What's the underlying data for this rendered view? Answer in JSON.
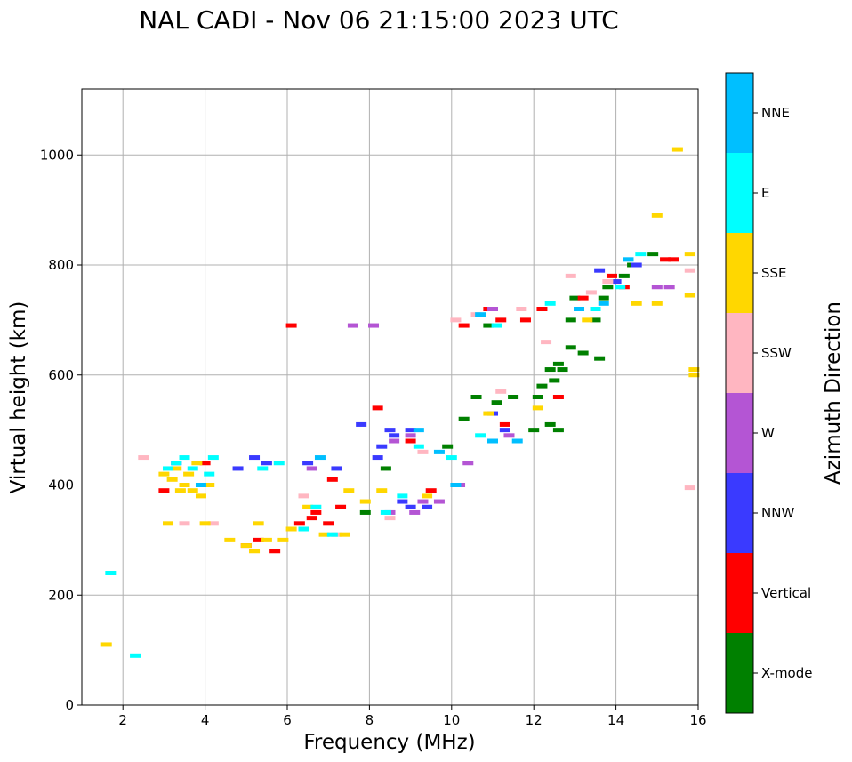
{
  "chart_data": {
    "type": "scatter",
    "title": "NAL CADI - Nov 06 21:15:00 2023 UTC",
    "xlabel": "Frequency (MHz)",
    "ylabel": "Virtual height (km)",
    "xlim": [
      1,
      16
    ],
    "ylim": [
      0,
      1120
    ],
    "xticks": [
      2,
      4,
      6,
      8,
      10,
      12,
      14,
      16
    ],
    "yticks": [
      0,
      200,
      400,
      600,
      800,
      1000
    ],
    "grid": true,
    "colorbar": {
      "label": "Azimuth Direction",
      "categories": [
        "X-mode",
        "Vertical",
        "NNW",
        "W",
        "SSW",
        "SSE",
        "E",
        "NNE"
      ],
      "colors": [
        "#008000",
        "#ff0000",
        "#3a3aff",
        "#b455d4",
        "#ffb6c1",
        "#ffd700",
        "#00ffff",
        "#00bfff"
      ]
    },
    "series": [
      {
        "name": "X-mode",
        "points": [
          [
            7.9,
            350
          ],
          [
            8.4,
            430
          ],
          [
            9.9,
            470
          ],
          [
            10.3,
            520
          ],
          [
            10.6,
            560
          ],
          [
            10.9,
            690
          ],
          [
            11.1,
            550
          ],
          [
            11.5,
            560
          ],
          [
            12.0,
            500
          ],
          [
            12.1,
            560
          ],
          [
            12.2,
            580
          ],
          [
            12.4,
            610
          ],
          [
            12.5,
            590
          ],
          [
            12.6,
            620
          ],
          [
            12.7,
            610
          ],
          [
            12.4,
            510
          ],
          [
            12.6,
            500
          ],
          [
            12.9,
            650
          ],
          [
            12.9,
            700
          ],
          [
            13.2,
            640
          ],
          [
            13.0,
            740
          ],
          [
            13.5,
            700
          ],
          [
            13.7,
            740
          ],
          [
            13.8,
            760
          ],
          [
            13.6,
            630
          ],
          [
            14.2,
            780
          ],
          [
            14.4,
            800
          ],
          [
            14.9,
            820
          ]
        ]
      },
      {
        "name": "Vertical",
        "points": [
          [
            3.0,
            390
          ],
          [
            4.0,
            440
          ],
          [
            5.0,
            290
          ],
          [
            5.3,
            300
          ],
          [
            5.7,
            280
          ],
          [
            6.1,
            690
          ],
          [
            6.3,
            330
          ],
          [
            6.6,
            340
          ],
          [
            6.7,
            350
          ],
          [
            7.0,
            330
          ],
          [
            7.1,
            410
          ],
          [
            7.3,
            360
          ],
          [
            8.2,
            540
          ],
          [
            9.0,
            480
          ],
          [
            9.5,
            390
          ],
          [
            10.3,
            690
          ],
          [
            10.9,
            720
          ],
          [
            11.2,
            700
          ],
          [
            11.3,
            510
          ],
          [
            11.8,
            700
          ],
          [
            12.2,
            720
          ],
          [
            12.6,
            560
          ],
          [
            13.2,
            740
          ],
          [
            13.9,
            780
          ],
          [
            14.2,
            760
          ],
          [
            15.2,
            810
          ],
          [
            15.4,
            810
          ]
        ]
      },
      {
        "name": "NNW",
        "points": [
          [
            3.3,
            440
          ],
          [
            4.8,
            430
          ],
          [
            5.2,
            450
          ],
          [
            5.5,
            440
          ],
          [
            6.5,
            440
          ],
          [
            7.2,
            430
          ],
          [
            7.8,
            510
          ],
          [
            8.2,
            450
          ],
          [
            8.5,
            500
          ],
          [
            8.6,
            490
          ],
          [
            8.8,
            370
          ],
          [
            9.0,
            360
          ],
          [
            9.4,
            360
          ],
          [
            9.0,
            500
          ],
          [
            8.3,
            470
          ],
          [
            11.0,
            530
          ],
          [
            11.3,
            500
          ],
          [
            13.6,
            790
          ],
          [
            14.0,
            770
          ],
          [
            14.5,
            800
          ]
        ]
      },
      {
        "name": "W",
        "points": [
          [
            6.6,
            430
          ],
          [
            7.6,
            690
          ],
          [
            8.1,
            690
          ],
          [
            8.5,
            350
          ],
          [
            8.6,
            480
          ],
          [
            9.0,
            490
          ],
          [
            9.1,
            350
          ],
          [
            9.3,
            370
          ],
          [
            9.7,
            370
          ],
          [
            10.2,
            400
          ],
          [
            10.4,
            440
          ],
          [
            11.0,
            720
          ],
          [
            11.4,
            490
          ],
          [
            15.0,
            760
          ],
          [
            15.3,
            760
          ]
        ]
      },
      {
        "name": "SSW",
        "points": [
          [
            2.5,
            450
          ],
          [
            3.5,
            330
          ],
          [
            4.2,
            330
          ],
          [
            6.4,
            380
          ],
          [
            7.2,
            310
          ],
          [
            8.5,
            340
          ],
          [
            9.3,
            460
          ],
          [
            10.1,
            700
          ],
          [
            10.6,
            710
          ],
          [
            11.2,
            570
          ],
          [
            11.7,
            720
          ],
          [
            12.3,
            660
          ],
          [
            12.9,
            780
          ],
          [
            13.4,
            750
          ],
          [
            13.8,
            770
          ],
          [
            15.8,
            790
          ],
          [
            15.8,
            395
          ]
        ]
      },
      {
        "name": "SSE",
        "points": [
          [
            1.6,
            110
          ],
          [
            3.0,
            420
          ],
          [
            3.2,
            410
          ],
          [
            3.3,
            430
          ],
          [
            3.4,
            390
          ],
          [
            3.5,
            400
          ],
          [
            3.6,
            420
          ],
          [
            3.7,
            390
          ],
          [
            3.8,
            440
          ],
          [
            3.9,
            380
          ],
          [
            4.1,
            400
          ],
          [
            4.0,
            330
          ],
          [
            3.1,
            330
          ],
          [
            4.6,
            300
          ],
          [
            5.0,
            290
          ],
          [
            5.2,
            280
          ],
          [
            5.3,
            330
          ],
          [
            5.5,
            300
          ],
          [
            5.9,
            300
          ],
          [
            6.1,
            320
          ],
          [
            6.5,
            360
          ],
          [
            6.9,
            310
          ],
          [
            7.4,
            310
          ],
          [
            7.5,
            390
          ],
          [
            7.9,
            370
          ],
          [
            8.3,
            390
          ],
          [
            9.4,
            380
          ],
          [
            10.9,
            530
          ],
          [
            12.1,
            540
          ],
          [
            13.3,
            700
          ],
          [
            14.5,
            730
          ],
          [
            15.0,
            730
          ],
          [
            15.0,
            890
          ],
          [
            15.5,
            1010
          ],
          [
            15.8,
            820
          ],
          [
            15.8,
            745
          ],
          [
            15.9,
            610
          ],
          [
            15.9,
            600
          ]
        ]
      },
      {
        "name": "E",
        "points": [
          [
            1.7,
            240
          ],
          [
            2.3,
            90
          ],
          [
            3.1,
            430
          ],
          [
            3.3,
            440
          ],
          [
            3.5,
            450
          ],
          [
            3.7,
            430
          ],
          [
            4.1,
            420
          ],
          [
            4.2,
            450
          ],
          [
            5.4,
            430
          ],
          [
            5.8,
            440
          ],
          [
            6.4,
            320
          ],
          [
            6.7,
            360
          ],
          [
            7.1,
            310
          ],
          [
            8.4,
            350
          ],
          [
            8.8,
            380
          ],
          [
            9.2,
            470
          ],
          [
            10.0,
            450
          ],
          [
            10.7,
            490
          ],
          [
            11.1,
            690
          ],
          [
            12.4,
            730
          ],
          [
            13.5,
            720
          ],
          [
            14.1,
            760
          ],
          [
            14.6,
            820
          ]
        ]
      },
      {
        "name": "NNE",
        "points": [
          [
            3.9,
            400
          ],
          [
            6.8,
            450
          ],
          [
            9.2,
            500
          ],
          [
            9.7,
            460
          ],
          [
            10.1,
            400
          ],
          [
            10.7,
            710
          ],
          [
            11.0,
            480
          ],
          [
            11.6,
            480
          ],
          [
            13.1,
            720
          ],
          [
            13.7,
            730
          ],
          [
            14.3,
            810
          ]
        ]
      }
    ]
  }
}
